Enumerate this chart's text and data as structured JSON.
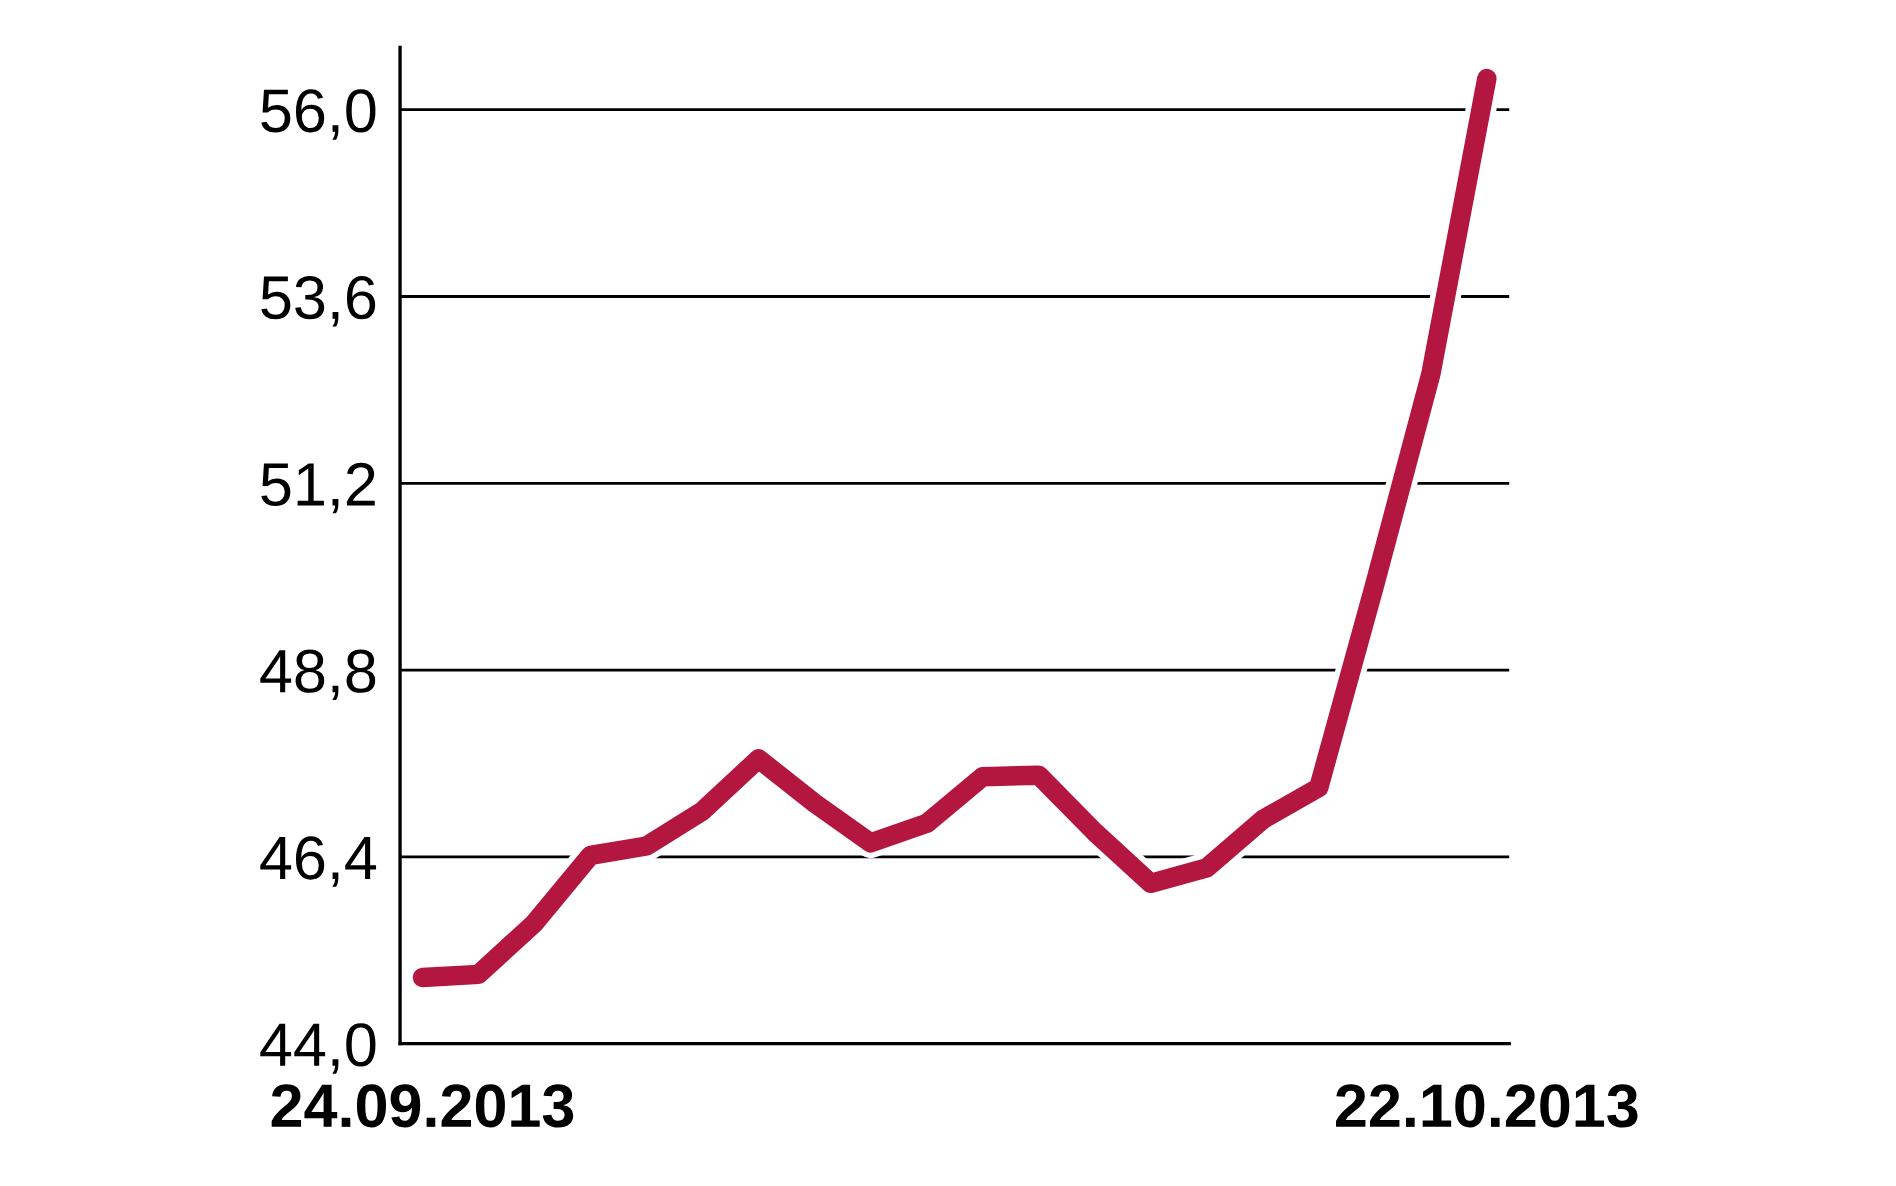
{
  "chart_data": {
    "type": "line",
    "categories": [
      "24.09.2013",
      null,
      null,
      null,
      null,
      null,
      null,
      null,
      null,
      null,
      null,
      null,
      null,
      null,
      null,
      null,
      null,
      null,
      null,
      "22.10.2013"
    ],
    "series": [
      {
        "color": "#b3173f",
        "values": [
          44.85,
          44.89,
          45.55,
          46.42,
          46.54,
          46.99,
          47.66,
          47.09,
          46.58,
          46.83,
          47.43,
          47.45,
          46.72,
          46.06,
          46.26,
          46.88,
          47.29,
          49.9,
          52.6,
          56.4
        ]
      }
    ],
    "ylim": [
      44.0,
      56.8
    ],
    "yticks": [
      {
        "value": 44.0,
        "label": "44,0"
      },
      {
        "value": 46.4,
        "label": "46,4"
      },
      {
        "value": 48.8,
        "label": "48,8"
      },
      {
        "value": 51.2,
        "label": "51,2"
      },
      {
        "value": 53.6,
        "label": "53,6"
      },
      {
        "value": 56.0,
        "label": "56,0"
      }
    ],
    "grid": "y",
    "marker": "none",
    "line_style": "solid"
  }
}
